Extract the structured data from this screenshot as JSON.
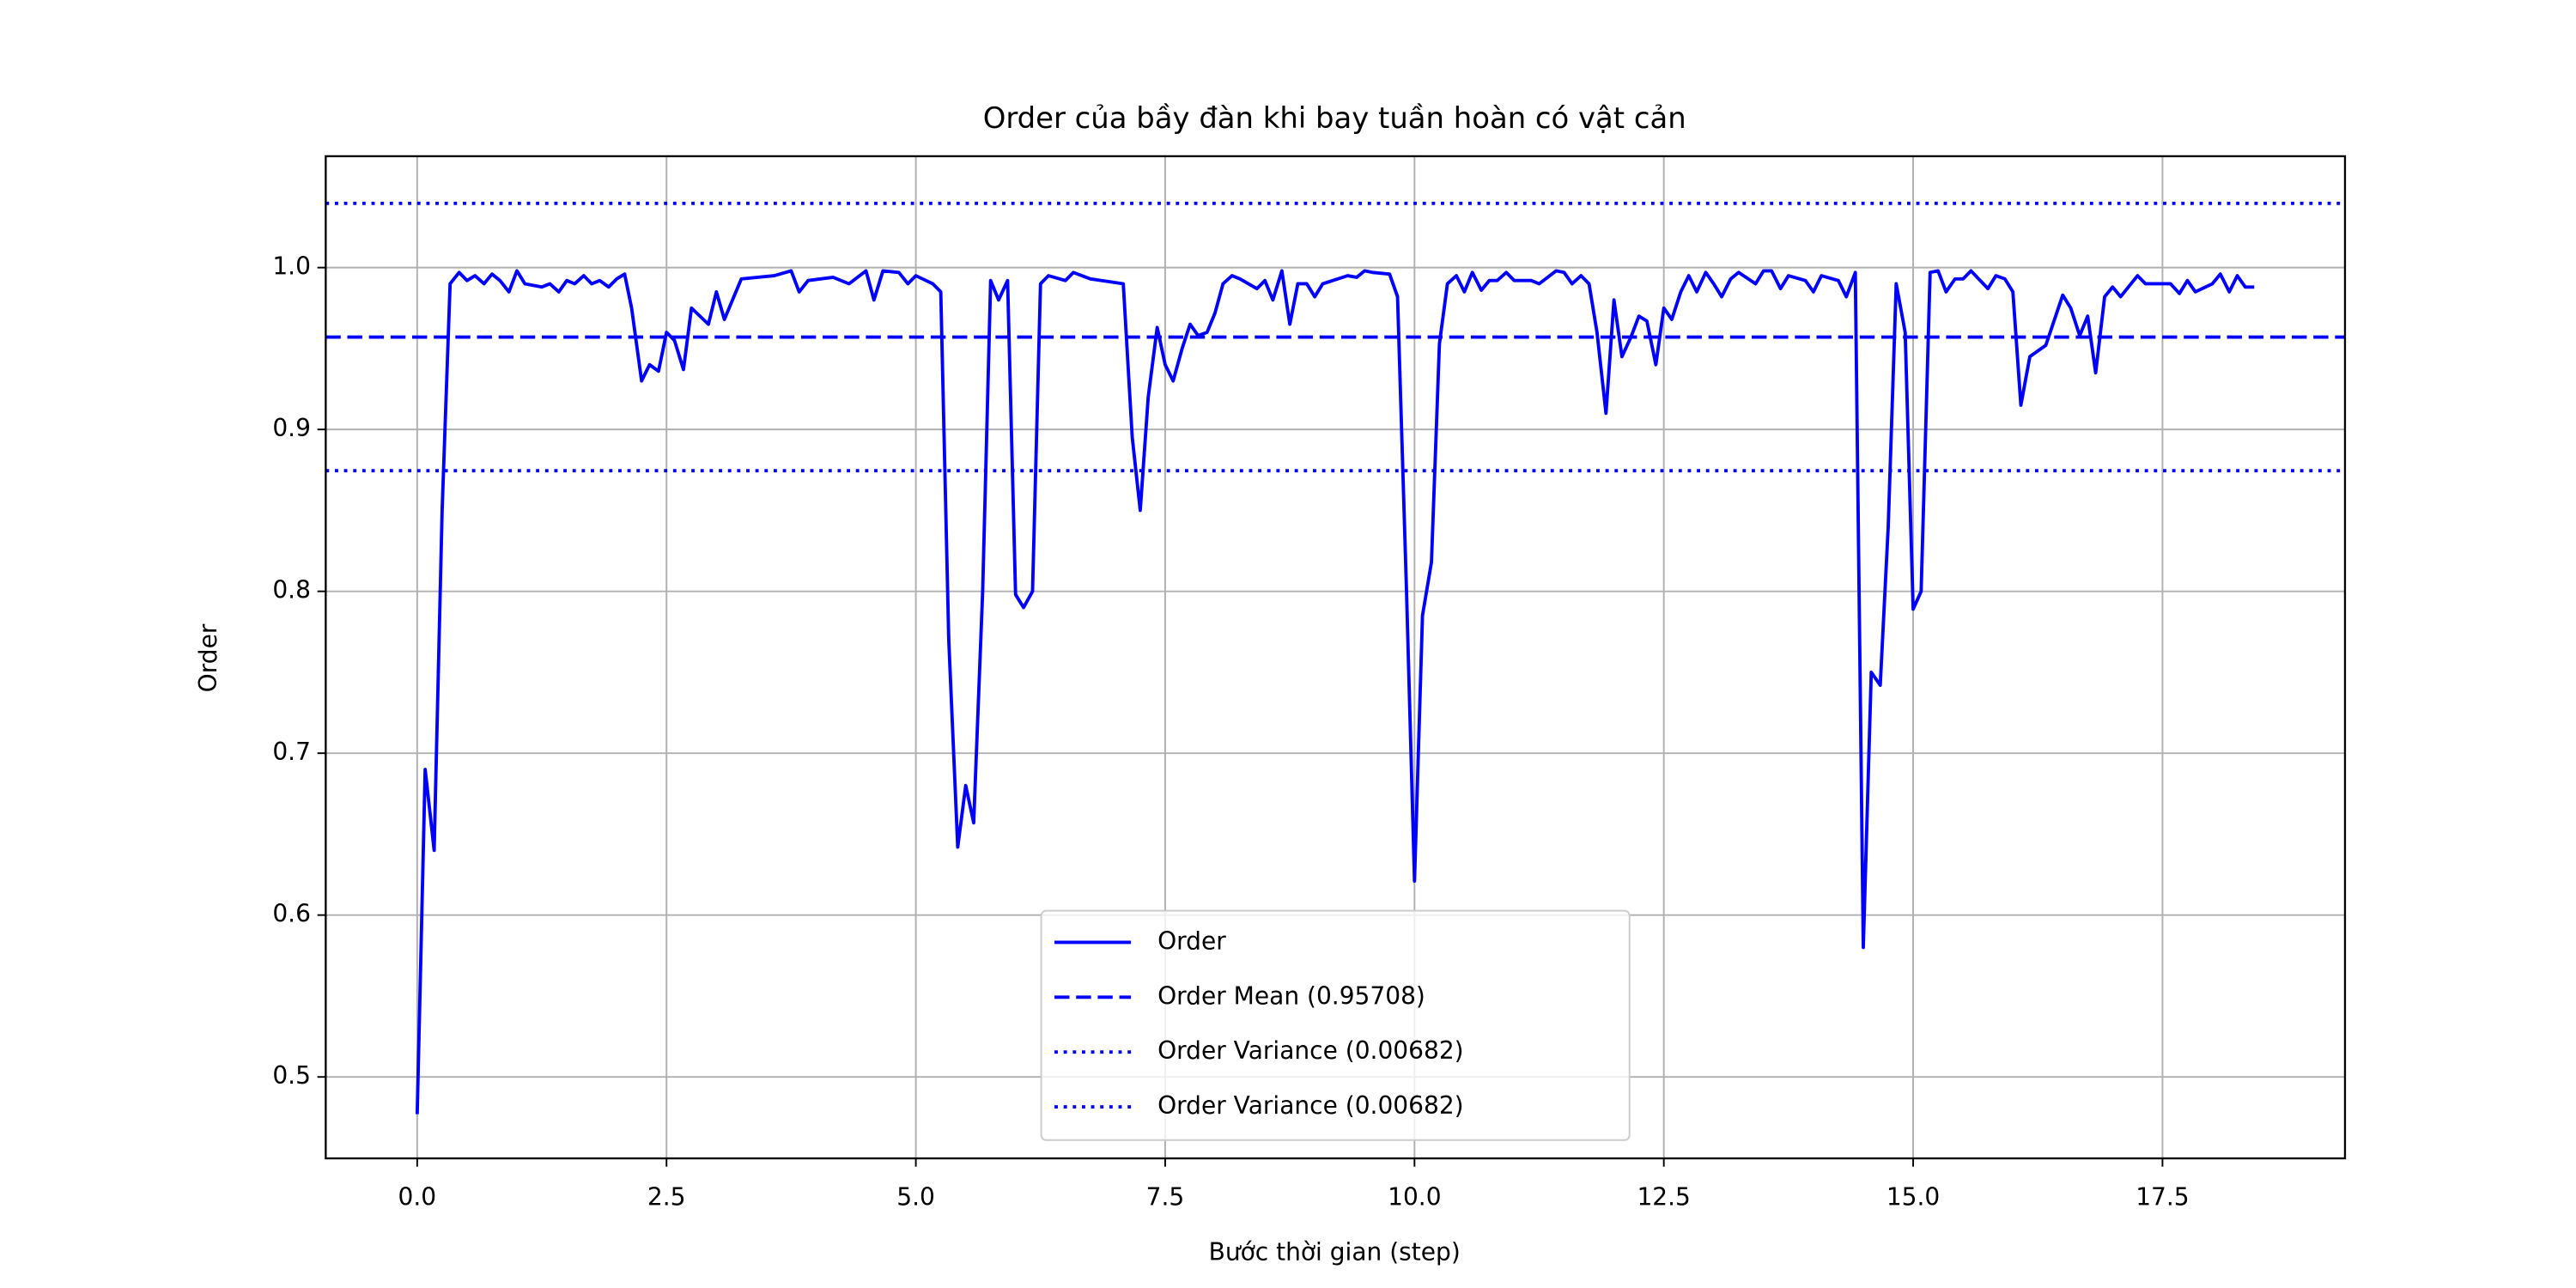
{
  "chart_data": {
    "type": "line",
    "title": "Order của bầy đàn khi bay tuần hoàn có vật cản",
    "xlabel": "Bước thời gian (step)",
    "ylabel": "Order",
    "xlim": [
      -0.917,
      19.33
    ],
    "ylim": [
      0.4497,
      1.0688
    ],
    "xticks": [
      {
        "value": 0,
        "label": "0.0"
      },
      2.5,
      {
        "value": 5,
        "label": "5.0"
      },
      7.5,
      {
        "value": 10,
        "label": "10.0"
      },
      12.5,
      {
        "value": 15,
        "label": "15.0"
      },
      17.5
    ],
    "yticks": [
      0.5,
      0.6,
      0.7,
      0.8,
      0.9,
      {
        "value": 1,
        "label": "1.0"
      }
    ],
    "grid": true,
    "legend": "lower center",
    "series": [
      {
        "name": "Order",
        "color": "#0000ff",
        "style": "solid",
        "x": [
          0,
          0.08,
          0.17,
          0.25,
          0.33,
          0.42,
          0.5,
          0.58,
          0.67,
          0.75,
          0.83,
          0.92,
          1.0,
          1.08,
          1.25,
          1.33,
          1.42,
          1.5,
          1.58,
          1.67,
          1.75,
          1.83,
          1.92,
          2.0,
          2.08,
          2.15,
          2.25,
          2.33,
          2.42,
          2.5,
          2.58,
          2.67,
          2.75,
          2.92,
          3.0,
          3.08,
          3.25,
          3.58,
          3.75,
          3.83,
          3.92,
          4.17,
          4.33,
          4.5,
          4.58,
          4.67,
          4.83,
          4.92,
          5.0,
          5.17,
          5.25,
          5.33,
          5.42,
          5.5,
          5.58,
          5.67,
          5.75,
          5.83,
          5.92,
          6.0,
          6.08,
          6.17,
          6.25,
          6.33,
          6.5,
          6.58,
          6.75,
          7.08,
          7.17,
          7.25,
          7.33,
          7.42,
          7.5,
          7.58,
          7.67,
          7.75,
          7.83,
          7.92,
          8.0,
          8.08,
          8.17,
          8.25,
          8.42,
          8.5,
          8.58,
          8.67,
          8.75,
          8.83,
          8.92,
          9.0,
          9.08,
          9.33,
          9.42,
          9.5,
          9.58,
          9.75,
          9.83,
          9.92,
          10.0,
          10.08,
          10.17,
          10.25,
          10.33,
          10.42,
          10.5,
          10.58,
          10.67,
          10.75,
          10.83,
          10.92,
          11.0,
          11.17,
          11.25,
          11.42,
          11.5,
          11.58,
          11.67,
          11.75,
          11.83,
          11.92,
          12.0,
          12.08,
          12.17,
          12.25,
          12.33,
          12.42,
          12.5,
          12.58,
          12.67,
          12.75,
          12.83,
          12.92,
          13.0,
          13.08,
          13.17,
          13.25,
          13.42,
          13.5,
          13.58,
          13.67,
          13.75,
          13.92,
          14.0,
          14.08,
          14.25,
          14.33,
          14.42,
          14.5,
          14.58,
          14.67,
          14.75,
          14.83,
          14.92,
          15.0,
          15.08,
          15.17,
          15.25,
          15.33,
          15.42,
          15.5,
          15.58,
          15.75,
          15.83,
          15.92,
          16.0,
          16.08,
          16.17,
          16.33,
          16.5,
          16.58,
          16.67,
          16.75,
          16.83,
          16.92,
          17.0,
          17.08,
          17.25,
          17.33,
          17.58,
          17.67,
          17.75,
          17.83,
          18.0,
          18.08,
          18.17,
          18.25,
          18.33,
          18.42
        ],
        "values": [
          0.477,
          0.69,
          0.64,
          0.85,
          0.99,
          0.997,
          0.992,
          0.995,
          0.99,
          0.996,
          0.992,
          0.985,
          0.998,
          0.99,
          0.988,
          0.99,
          0.985,
          0.992,
          0.99,
          0.995,
          0.99,
          0.992,
          0.988,
          0.993,
          0.996,
          0.975,
          0.93,
          0.94,
          0.936,
          0.96,
          0.955,
          0.937,
          0.975,
          0.965,
          0.985,
          0.968,
          0.993,
          0.995,
          0.998,
          0.985,
          0.992,
          0.994,
          0.99,
          0.998,
          0.98,
          0.998,
          0.997,
          0.99,
          0.995,
          0.99,
          0.985,
          0.77,
          0.642,
          0.68,
          0.657,
          0.8,
          0.992,
          0.98,
          0.992,
          0.798,
          0.79,
          0.8,
          0.99,
          0.995,
          0.992,
          0.997,
          0.993,
          0.99,
          0.895,
          0.85,
          0.92,
          0.963,
          0.94,
          0.93,
          0.95,
          0.965,
          0.958,
          0.96,
          0.972,
          0.99,
          0.995,
          0.993,
          0.987,
          0.992,
          0.98,
          0.998,
          0.965,
          0.99,
          0.99,
          0.982,
          0.99,
          0.995,
          0.994,
          0.998,
          0.997,
          0.996,
          0.982,
          0.8,
          0.621,
          0.785,
          0.818,
          0.953,
          0.99,
          0.995,
          0.985,
          0.997,
          0.986,
          0.992,
          0.992,
          0.997,
          0.992,
          0.992,
          0.99,
          0.998,
          0.997,
          0.99,
          0.995,
          0.99,
          0.96,
          0.91,
          0.98,
          0.945,
          0.957,
          0.97,
          0.967,
          0.94,
          0.975,
          0.968,
          0.985,
          0.995,
          0.985,
          0.997,
          0.99,
          0.982,
          0.993,
          0.997,
          0.99,
          0.998,
          0.998,
          0.987,
          0.995,
          0.992,
          0.985,
          0.995,
          0.992,
          0.982,
          0.997,
          0.58,
          0.75,
          0.742,
          0.84,
          0.99,
          0.96,
          0.789,
          0.8,
          0.997,
          0.998,
          0.985,
          0.993,
          0.993,
          0.998,
          0.987,
          0.995,
          0.993,
          0.985,
          0.915,
          0.945,
          0.952,
          0.983,
          0.975,
          0.958,
          0.97,
          0.935,
          0.982,
          0.988,
          0.982,
          0.995,
          0.99,
          0.99,
          0.984,
          0.992,
          0.985,
          0.99,
          0.996,
          0.985,
          0.995,
          0.988,
          0.988
        ]
      }
    ],
    "hlines": [
      {
        "name": "Order Mean (0.95708)",
        "value": 0.95708,
        "color": "#0000ff",
        "style": "dashed"
      },
      {
        "name": "Order Variance (0.00682)",
        "value": 1.03966,
        "color": "#0000ff",
        "style": "dotted"
      },
      {
        "name": "Order Variance (0.00682)",
        "value": 0.8745,
        "color": "#0000ff",
        "style": "dotted"
      }
    ]
  }
}
